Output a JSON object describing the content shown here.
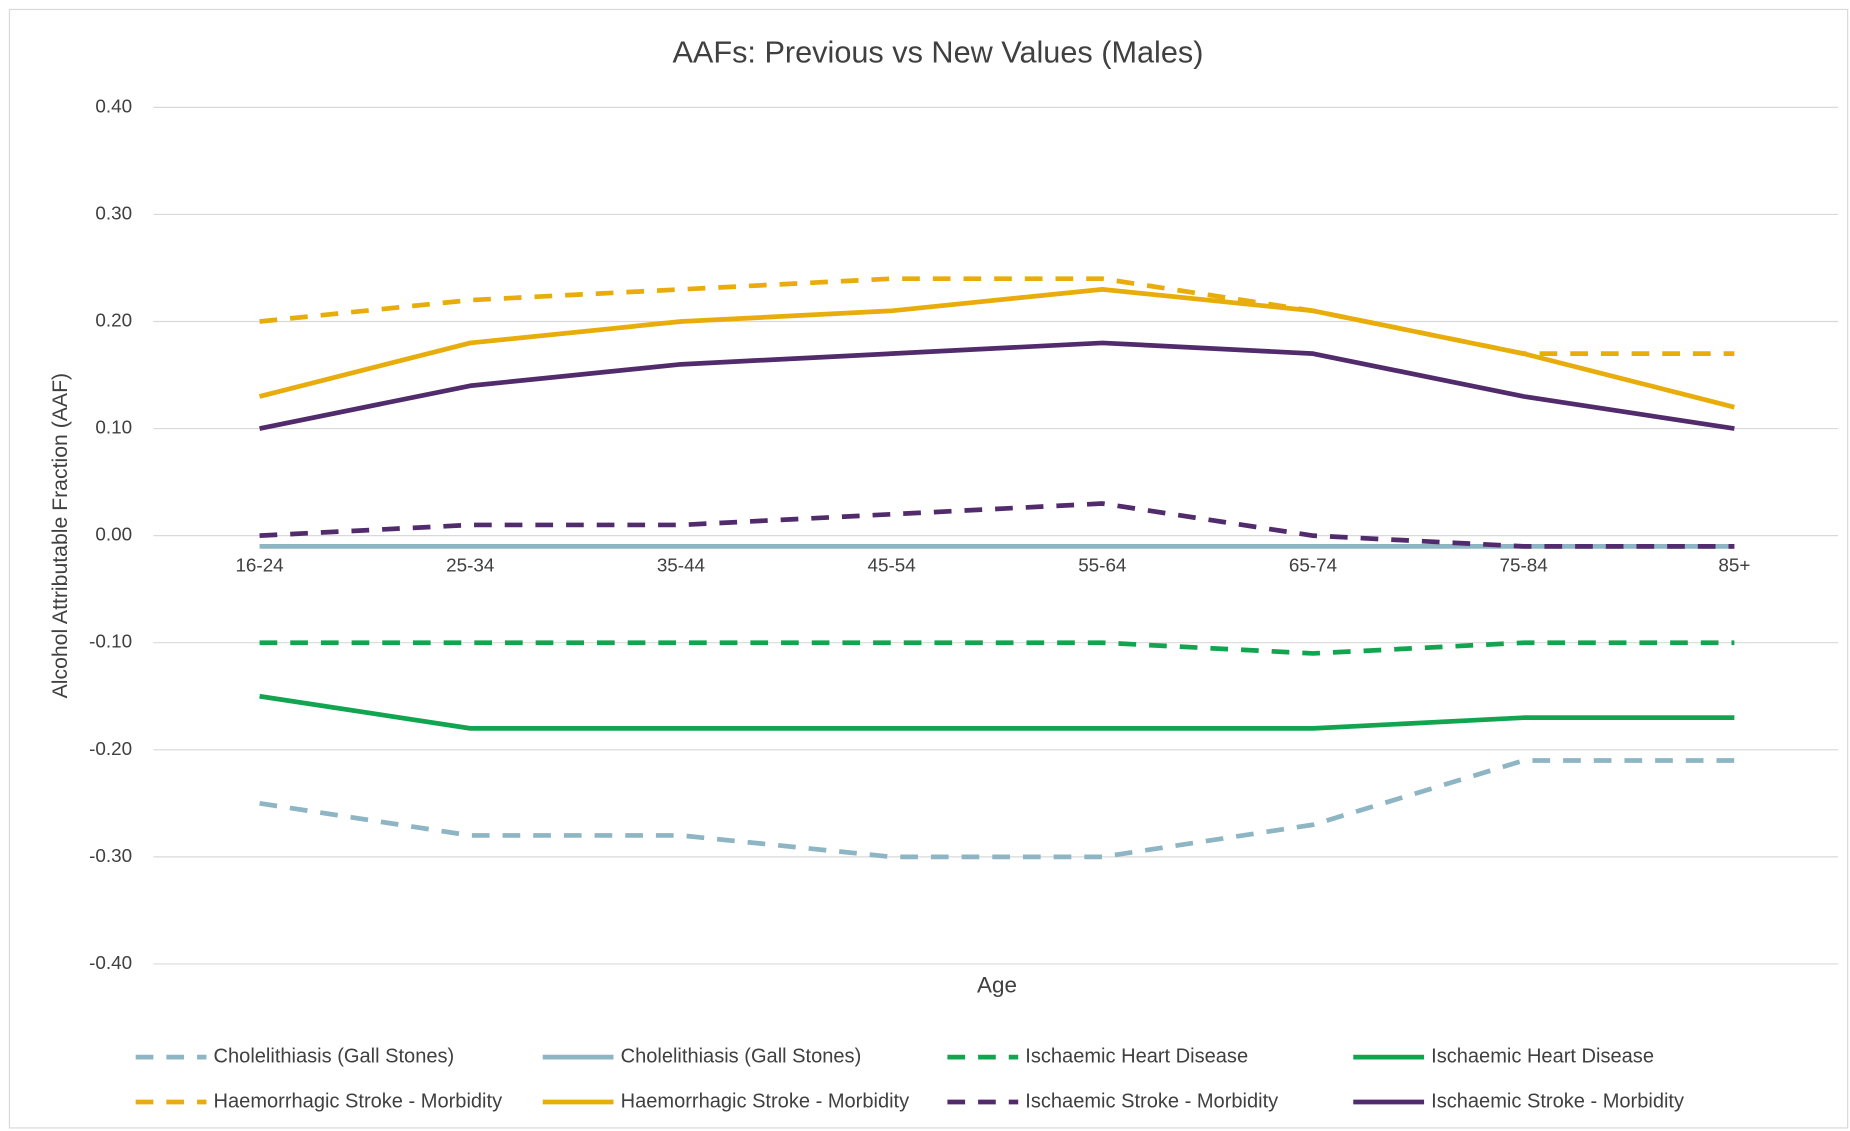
{
  "chart_data": {
    "type": "line",
    "title": "AAFs: Previous vs New Values (Males)",
    "x_label": "Age",
    "y_label": "Alcohol Attributable Fraction (AAF)",
    "categories": [
      "16-24",
      "25-34",
      "35-44",
      "45-54",
      "55-64",
      "65-74",
      "75-84",
      "85+"
    ],
    "ylim": [
      -0.4,
      0.4
    ],
    "yticks": [
      {
        "value": 0.4,
        "label": "0.40"
      },
      {
        "value": 0.3,
        "label": "0.30"
      },
      {
        "value": 0.2,
        "label": "0.20"
      },
      {
        "value": 0.1,
        "label": "0.10"
      },
      {
        "value": 0,
        "label": "0.00"
      },
      {
        "value": -0.1,
        "label": "-0.10"
      },
      {
        "value": -0.2,
        "label": "-0.20"
      },
      {
        "value": -0.3,
        "label": "-0.30"
      },
      {
        "value": -0.4,
        "label": "-0.40"
      }
    ],
    "grid": true,
    "legend": "bottom",
    "series": [
      {
        "name": "Cholelithiasis (Gall Stones)",
        "color": "#8db5c4",
        "dashed": true,
        "values": [
          -0.25,
          -0.28,
          -0.28,
          -0.3,
          -0.3,
          -0.27,
          -0.21,
          -0.21
        ]
      },
      {
        "name": "Cholelithiasis (Gall Stones)",
        "color": "#8db5c4",
        "dashed": false,
        "values": [
          -0.01,
          -0.01,
          -0.01,
          -0.01,
          -0.01,
          -0.01,
          -0.01,
          -0.01
        ]
      },
      {
        "name": "Ischaemic Heart Disease",
        "color": "#12a550",
        "dashed": true,
        "values": [
          -0.1,
          -0.1,
          -0.1,
          -0.1,
          -0.1,
          -0.11,
          -0.1,
          -0.1
        ]
      },
      {
        "name": "Ischaemic Heart Disease",
        "color": "#12a550",
        "dashed": false,
        "values": [
          -0.15,
          -0.18,
          -0.18,
          -0.18,
          -0.18,
          -0.18,
          -0.17,
          -0.17
        ]
      },
      {
        "name": "Haemorrhagic Stroke - Morbidity",
        "color": "#e8ad0a",
        "dashed": true,
        "values": [
          0.2,
          0.22,
          0.23,
          0.24,
          0.24,
          0.21,
          0.17,
          0.17
        ]
      },
      {
        "name": "Haemorrhagic Stroke - Morbidity",
        "color": "#e8ad0a",
        "dashed": false,
        "values": [
          0.13,
          0.18,
          0.2,
          0.21,
          0.23,
          0.21,
          0.17,
          0.12
        ]
      },
      {
        "name": "Ischaemic Stroke - Morbidity",
        "color": "#512b6b",
        "dashed": true,
        "values": [
          0.0,
          0.01,
          0.01,
          0.02,
          0.03,
          0.0,
          -0.01,
          -0.01
        ]
      },
      {
        "name": "Ischaemic Stroke - Morbidity",
        "color": "#512b6b",
        "dashed": false,
        "values": [
          0.1,
          0.14,
          0.16,
          0.17,
          0.18,
          0.17,
          0.13,
          0.1
        ]
      }
    ]
  }
}
